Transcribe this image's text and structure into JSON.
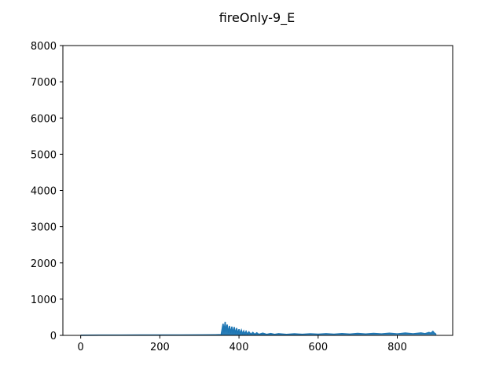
{
  "chart_data": {
    "type": "line",
    "title": "fireOnly-9_E",
    "xlabel": "",
    "ylabel": "",
    "xlim": [
      -45,
      940
    ],
    "ylim": [
      0,
      8000
    ],
    "x_ticks": [
      0,
      200,
      400,
      600,
      800
    ],
    "y_ticks": [
      0,
      1000,
      2000,
      3000,
      4000,
      5000,
      6000,
      7000,
      8000
    ],
    "grid": false,
    "series": [
      {
        "color": "#1f77b4",
        "points": [
          [
            0,
            5
          ],
          [
            50,
            6
          ],
          [
            100,
            7
          ],
          [
            150,
            8
          ],
          [
            200,
            9
          ],
          [
            250,
            10
          ],
          [
            300,
            12
          ],
          [
            340,
            15
          ],
          [
            355,
            20
          ],
          [
            360,
            320
          ],
          [
            362,
            80
          ],
          [
            365,
            370
          ],
          [
            367,
            90
          ],
          [
            370,
            300
          ],
          [
            373,
            70
          ],
          [
            376,
            260
          ],
          [
            379,
            60
          ],
          [
            382,
            240
          ],
          [
            385,
            55
          ],
          [
            388,
            230
          ],
          [
            391,
            50
          ],
          [
            394,
            200
          ],
          [
            397,
            45
          ],
          [
            400,
            170
          ],
          [
            403,
            40
          ],
          [
            406,
            140
          ],
          [
            409,
            38
          ],
          [
            412,
            120
          ],
          [
            415,
            35
          ],
          [
            418,
            110
          ],
          [
            421,
            33
          ],
          [
            425,
            95
          ],
          [
            430,
            30
          ],
          [
            435,
            80
          ],
          [
            440,
            28
          ],
          [
            445,
            70
          ],
          [
            450,
            27
          ],
          [
            460,
            60
          ],
          [
            470,
            26
          ],
          [
            480,
            50
          ],
          [
            490,
            26
          ],
          [
            500,
            45
          ],
          [
            520,
            27
          ],
          [
            540,
            42
          ],
          [
            560,
            28
          ],
          [
            580,
            44
          ],
          [
            600,
            30
          ],
          [
            620,
            46
          ],
          [
            640,
            32
          ],
          [
            660,
            48
          ],
          [
            680,
            34
          ],
          [
            700,
            52
          ],
          [
            720,
            36
          ],
          [
            740,
            55
          ],
          [
            760,
            38
          ],
          [
            780,
            58
          ],
          [
            800,
            40
          ],
          [
            820,
            62
          ],
          [
            840,
            42
          ],
          [
            860,
            68
          ],
          [
            870,
            45
          ],
          [
            880,
            80
          ],
          [
            885,
            60
          ],
          [
            890,
            110
          ],
          [
            893,
            70
          ],
          [
            896,
            50
          ],
          [
            898,
            20
          ]
        ],
        "band_low": [
          [
            355,
            5
          ],
          [
            400,
            8
          ],
          [
            500,
            10
          ],
          [
            600,
            12
          ],
          [
            700,
            14
          ],
          [
            800,
            16
          ],
          [
            898,
            18
          ]
        ]
      }
    ]
  }
}
